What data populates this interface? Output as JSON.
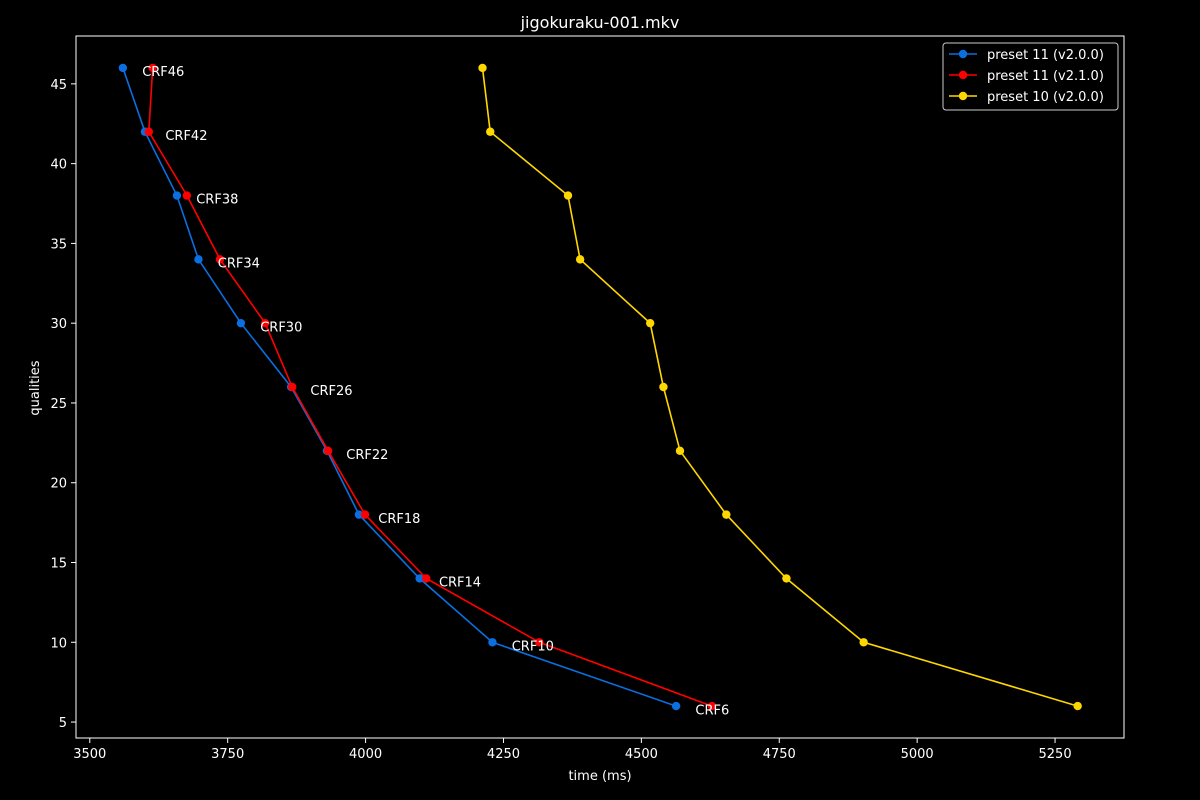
{
  "chart_data": {
    "type": "line",
    "title": "jigokuraku-001.mkv",
    "xlabel": "time (ms)",
    "ylabel": "qualities",
    "xlim": [
      3475,
      5375
    ],
    "ylim": [
      4,
      48
    ],
    "x_ticks": [
      3500,
      3750,
      4000,
      4250,
      4500,
      4750,
      5000,
      5250
    ],
    "y_ticks": [
      5,
      10,
      15,
      20,
      25,
      30,
      35,
      40,
      45
    ],
    "grid": false,
    "legend_position": "top-right",
    "series": [
      {
        "name": "preset 11 (v2.0.0)",
        "color": "#0a6fe0",
        "points": [
          [
            3560,
            46
          ],
          [
            3600,
            42
          ],
          [
            3658,
            38
          ],
          [
            3697,
            34
          ],
          [
            3774,
            30
          ],
          [
            3865,
            26
          ],
          [
            3930,
            22
          ],
          [
            3988,
            18
          ],
          [
            4098,
            14
          ],
          [
            4230,
            10
          ],
          [
            4563,
            6
          ]
        ]
      },
      {
        "name": "preset 11 (v2.1.0)",
        "color": "#ff0000",
        "points": [
          [
            3614,
            46
          ],
          [
            3607,
            42
          ],
          [
            3676,
            38
          ],
          [
            3736,
            34
          ],
          [
            3818,
            30
          ],
          [
            3867,
            26
          ],
          [
            3932,
            22
          ],
          [
            3999,
            18
          ],
          [
            4110,
            14
          ],
          [
            4315,
            10
          ],
          [
            4628,
            6
          ]
        ]
      },
      {
        "name": "preset 10 (v2.0.0)",
        "color": "#ffd700",
        "points": [
          [
            4212,
            46
          ],
          [
            4226,
            42
          ],
          [
            4367,
            38
          ],
          [
            4389,
            34
          ],
          [
            4516,
            30
          ],
          [
            4540,
            26
          ],
          [
            4570,
            22
          ],
          [
            4654,
            18
          ],
          [
            4763,
            14
          ],
          [
            4903,
            10
          ],
          [
            5291,
            6
          ]
        ]
      }
    ],
    "annotations": [
      {
        "text": "CRF46",
        "x": 3595,
        "y": 45.8
      },
      {
        "text": "CRF42",
        "x": 3637,
        "y": 41.8
      },
      {
        "text": "CRF38",
        "x": 3693,
        "y": 37.8
      },
      {
        "text": "CRF34",
        "x": 3732,
        "y": 33.8
      },
      {
        "text": "CRF30",
        "x": 3809,
        "y": 29.8
      },
      {
        "text": "CRF26",
        "x": 3900,
        "y": 25.8
      },
      {
        "text": "CRF22",
        "x": 3965,
        "y": 21.8
      },
      {
        "text": "CRF18",
        "x": 4023,
        "y": 17.8
      },
      {
        "text": "CRF14",
        "x": 4133,
        "y": 13.8
      },
      {
        "text": "CRF10",
        "x": 4265,
        "y": 9.8
      },
      {
        "text": "CRF6",
        "x": 4598,
        "y": 5.8
      }
    ]
  }
}
